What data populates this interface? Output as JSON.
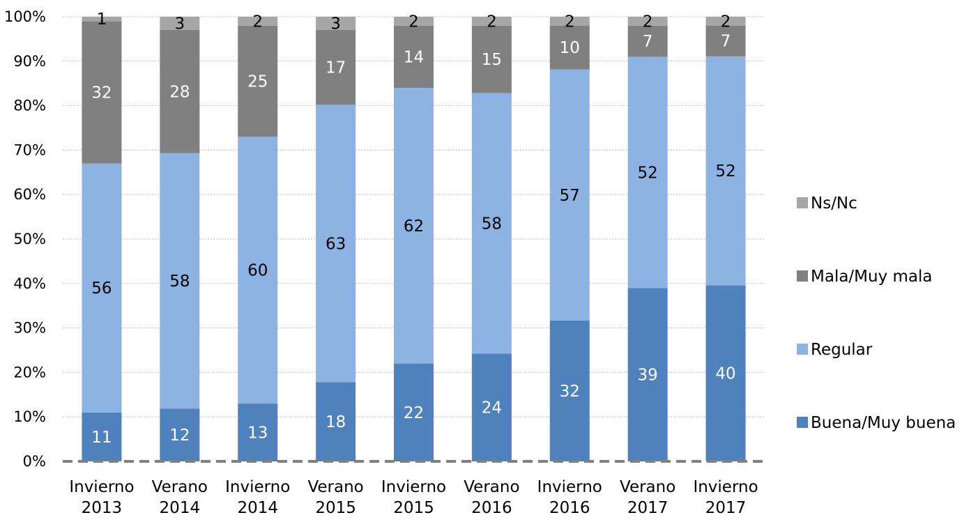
{
  "chart_data": {
    "type": "bar",
    "stacked": true,
    "percent": true,
    "categories": [
      [
        "Invierno",
        "2013"
      ],
      [
        "Verano",
        "2014"
      ],
      [
        "Invierno",
        "2014"
      ],
      [
        "Verano",
        "2015"
      ],
      [
        "Invierno",
        "2015"
      ],
      [
        "Verano",
        "2016"
      ],
      [
        "Invierno",
        "2016"
      ],
      [
        "Verano",
        "2017"
      ],
      [
        "Invierno",
        "2017"
      ]
    ],
    "series": [
      {
        "name": "Buena/Muy buena",
        "color": "#4f81bd",
        "label_color": "#ffffff",
        "values": [
          11,
          12,
          13,
          18,
          22,
          24,
          32,
          39,
          40
        ]
      },
      {
        "name": "Regular",
        "color": "#8db3e2",
        "label_color": "#000000",
        "values": [
          56,
          58,
          60,
          63,
          62,
          58,
          57,
          52,
          52
        ]
      },
      {
        "name": "Mala/Muy mala",
        "color": "#808080",
        "label_color": "#ffffff",
        "values": [
          32,
          28,
          25,
          17,
          14,
          15,
          10,
          7,
          7
        ]
      },
      {
        "name": "Ns/Nc",
        "color": "#a6a6a6",
        "label_color": "#000000",
        "values": [
          1,
          3,
          2,
          3,
          2,
          2,
          2,
          2,
          2
        ]
      }
    ],
    "y_ticks": [
      "0%",
      "10%",
      "20%",
      "30%",
      "40%",
      "50%",
      "60%",
      "70%",
      "80%",
      "90%",
      "100%"
    ],
    "ylim": [
      0,
      100
    ],
    "grid": true,
    "legend_position": "right",
    "legend_order": [
      "Ns/Nc",
      "Mala/Muy mala",
      "Regular",
      "Buena/Muy buena"
    ]
  }
}
